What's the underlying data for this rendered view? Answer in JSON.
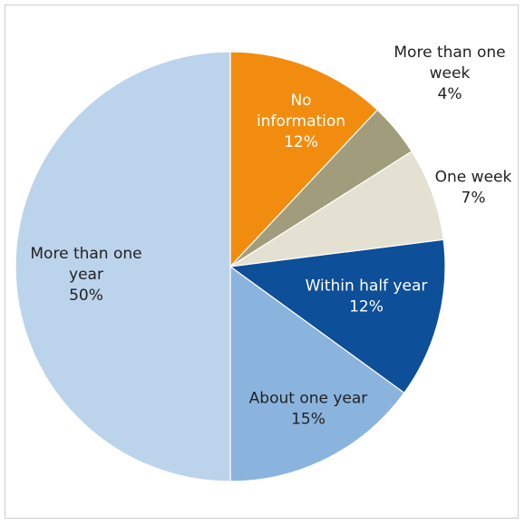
{
  "chart_data": {
    "type": "pie",
    "title": "",
    "start_angle_deg": 0,
    "direction": "clockwise",
    "slices": [
      {
        "label_lines": [
          "No",
          "information"
        ],
        "value_label": "12%",
        "value": 12,
        "color": "#f28c0f",
        "label_color": "#ffffff"
      },
      {
        "label_lines": [
          "More than one",
          "week"
        ],
        "value_label": "4%",
        "value": 4,
        "color": "#a19d7c",
        "label_color": "#222222"
      },
      {
        "label_lines": [
          "One week"
        ],
        "value_label": "7%",
        "value": 7,
        "color": "#e4e1d3",
        "label_color": "#222222"
      },
      {
        "label_lines": [
          "Within half year"
        ],
        "value_label": "12%",
        "value": 12,
        "color": "#0d4f98",
        "label_color": "#ffffff"
      },
      {
        "label_lines": [
          "About one year"
        ],
        "value_label": "15%",
        "value": 15,
        "color": "#8ab4de",
        "label_color": "#222222"
      },
      {
        "label_lines": [
          "More than one",
          "year"
        ],
        "value_label": "50%",
        "value": 50,
        "color": "#bcd3ec",
        "label_color": "#222222"
      }
    ]
  }
}
